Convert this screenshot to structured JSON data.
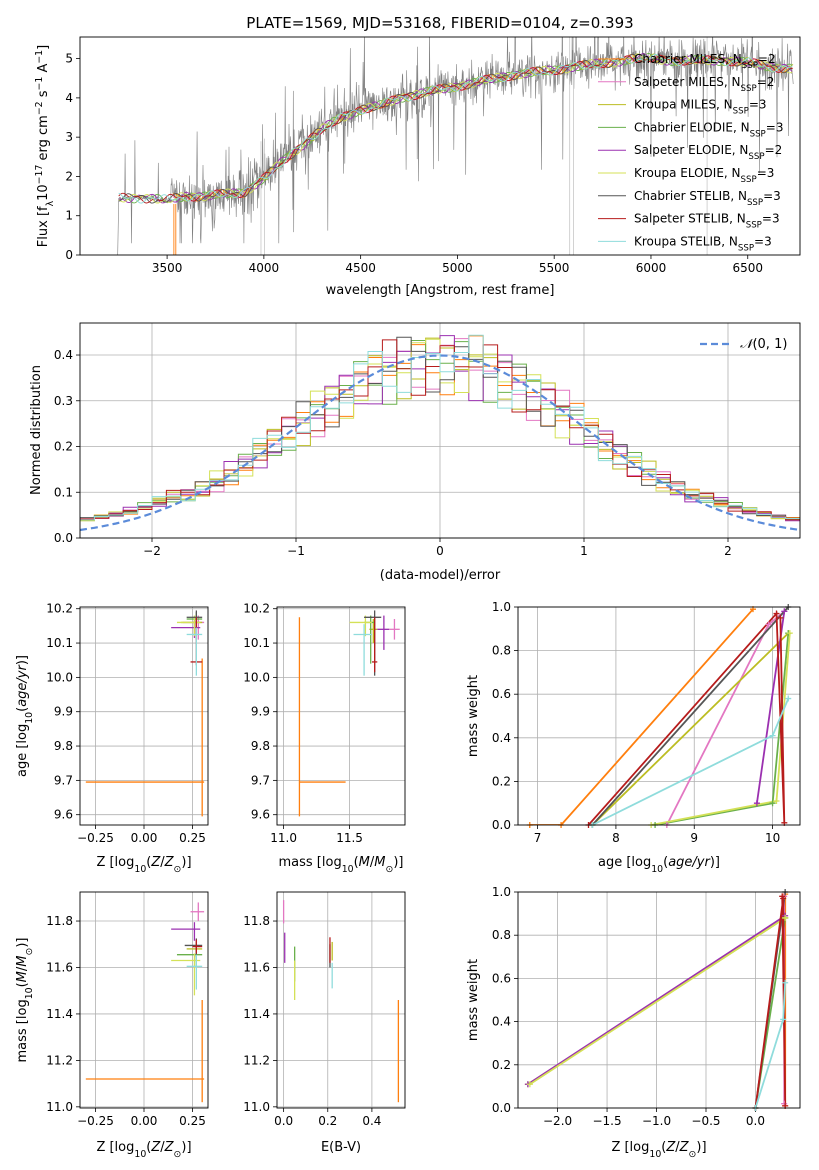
{
  "figure_title": "PLATE=1569, MJD=53168, FIBERID=0104, z=0.393",
  "colors": {
    "Chabrier MILES": "#ff7f0e",
    "Salpeter MILES": "#e377c2",
    "Kroupa MILES": "#bcbd22",
    "Chabrier ELODIE": "#6ab04c",
    "Salpeter ELODIE": "#9b30b0",
    "Kroupa ELODIE": "#d4e157",
    "Chabrier STELIB": "#555555",
    "Salpeter STELIB": "#b71c1c",
    "Kroupa STELIB": "#8fdcdc",
    "data": "#808080",
    "normal": "#5b8bd9"
  },
  "chart_data": [
    {
      "type": "line",
      "panel": "spectrum",
      "xlabel": "wavelength [Angstrom, rest frame]",
      "ylabel": "Flux [f_λ 10^-17 erg cm^-2 s^-1 A^-1]",
      "xlim": [
        3050,
        6770
      ],
      "ylim": [
        0,
        5.55
      ],
      "xticks": [
        3500,
        4000,
        4500,
        5000,
        5500,
        6000,
        6500
      ],
      "yticks": [
        0,
        1,
        2,
        3,
        4,
        5
      ],
      "grid": false,
      "legend_position": "top-right",
      "legend": [
        "Chabrier MILES, N_SSP=2",
        "Salpeter MILES, N_SSP=2",
        "Kroupa MILES, N_SSP=3",
        "Chabrier ELODIE, N_SSP=3",
        "Salpeter ELODIE, N_SSP=2",
        "Kroupa ELODIE, N_SSP=3",
        "Chabrier STELIB, N_SSP=3",
        "Salpeter STELIB, N_SSP=3",
        "Kroupa STELIB, N_SSP=3"
      ],
      "continuum": {
        "x": [
          3250,
          3400,
          3500,
          3600,
          3700,
          3800,
          3900,
          4000,
          4100,
          4200,
          4300,
          4400,
          4500,
          4600,
          4700,
          4800,
          4900,
          5000,
          5100,
          5200,
          5300,
          5400,
          5500,
          5600,
          5700,
          5800,
          5900,
          6000,
          6100,
          6200,
          6300,
          6400,
          6500,
          6600,
          6730
        ],
        "y": [
          1.45,
          1.45,
          1.4,
          1.5,
          1.5,
          1.55,
          1.6,
          1.95,
          2.4,
          2.8,
          3.2,
          3.5,
          3.7,
          3.8,
          4.0,
          4.1,
          4.2,
          4.3,
          4.4,
          4.5,
          4.6,
          4.65,
          4.7,
          4.8,
          4.85,
          4.9,
          5.0,
          5.0,
          4.95,
          4.95,
          4.95,
          4.95,
          4.9,
          4.8,
          4.75
        ]
      }
    },
    {
      "type": "bar",
      "panel": "residual-histogram",
      "xlabel": "(data-model)/error",
      "ylabel": "Normed distribution",
      "xlim": [
        -2.5,
        2.5
      ],
      "ylim": [
        0,
        0.47
      ],
      "xticks": [
        -2,
        -1,
        0,
        1,
        2
      ],
      "yticks": [
        0.0,
        0.1,
        0.2,
        0.3,
        0.4
      ],
      "grid": true,
      "bin_width": 0.1,
      "legend": [
        "N(0,1)"
      ],
      "legend_position": "top-right",
      "normal_pdf": {
        "mean": 0,
        "sigma": 1,
        "peak": 0.399
      }
    },
    {
      "type": "scatter",
      "panel": "age-vs-Z",
      "xlabel": "Z [log10(Z/Z⊙)]",
      "ylabel": "age [log10(age/yr)]",
      "xlim": [
        -0.33,
        0.33
      ],
      "ylim": [
        9.57,
        10.205
      ],
      "xticks": [
        -0.25,
        0.0,
        0.25
      ],
      "yticks": [
        9.6,
        9.7,
        9.8,
        9.9,
        10.0,
        10.1,
        10.2
      ],
      "points": [
        {
          "model": "Chabrier MILES",
          "x": 0.3,
          "y": 9.695,
          "xerr": [
            0.6,
            0.01
          ],
          "yerr": [
            0.1,
            0.36
          ]
        },
        {
          "model": "Salpeter MILES",
          "x": 0.28,
          "y": 10.16,
          "xerr": [
            0.08,
            0.03
          ],
          "yerr": [
            0.05,
            0.02
          ]
        },
        {
          "model": "Kroupa MILES",
          "x": 0.27,
          "y": 10.16,
          "xerr": [
            0.08,
            0.03
          ],
          "yerr": [
            0.05,
            0.02
          ]
        },
        {
          "model": "Chabrier ELODIE",
          "x": 0.27,
          "y": 10.17,
          "xerr": [
            0.05,
            0.03
          ],
          "yerr": [
            0.03,
            0.02
          ]
        },
        {
          "model": "Salpeter ELODIE",
          "x": 0.26,
          "y": 10.145,
          "xerr": [
            0.12,
            0.03
          ],
          "yerr": [
            0.03,
            0.02
          ]
        },
        {
          "model": "Kroupa ELODIE",
          "x": 0.26,
          "y": 10.16,
          "xerr": [
            0.09,
            0.03
          ],
          "yerr": [
            0.04,
            0.02
          ]
        },
        {
          "model": "Chabrier STELIB",
          "x": 0.27,
          "y": 10.175,
          "xerr": [
            0.05,
            0.03
          ],
          "yerr": [
            0.05,
            0.02
          ]
        },
        {
          "model": "Salpeter STELIB",
          "x": 0.27,
          "y": 10.045,
          "xerr": [
            0.03,
            0.03
          ],
          "yerr": [
            0.01,
            0.13
          ]
        },
        {
          "model": "Kroupa STELIB",
          "x": 0.27,
          "y": 10.125,
          "xerr": [
            0.05,
            0.03
          ],
          "yerr": [
            0.12,
            0.02
          ]
        }
      ]
    },
    {
      "type": "scatter",
      "panel": "age-vs-mass",
      "xlabel": "mass [log10(M/M⊙)]",
      "ylabel": "",
      "xlim": [
        10.95,
        11.92
      ],
      "ylim": [
        9.57,
        10.205
      ],
      "xticks": [
        11.0,
        11.5
      ],
      "yticks": [
        9.6,
        9.7,
        9.8,
        9.9,
        10.0,
        10.1,
        10.2
      ],
      "points": [
        {
          "model": "Chabrier MILES",
          "x": 11.12,
          "y": 9.695,
          "xerr": [
            0.0,
            0.35
          ],
          "yerr": [
            0.1,
            0.48
          ]
        },
        {
          "model": "Salpeter MILES",
          "x": 11.84,
          "y": 10.14,
          "xerr": [
            0.04,
            0.04
          ],
          "yerr": [
            0.03,
            0.03
          ]
        },
        {
          "model": "Kroupa MILES",
          "x": 11.68,
          "y": 10.14,
          "xerr": [
            0.03,
            0.03
          ],
          "yerr": [
            0.04,
            0.03
          ]
        },
        {
          "model": "Chabrier ELODIE",
          "x": 11.66,
          "y": 10.16,
          "xerr": [
            0.05,
            0.03
          ],
          "yerr": [
            0.12,
            0.02
          ]
        },
        {
          "model": "Salpeter ELODIE",
          "x": 11.76,
          "y": 10.14,
          "xerr": [
            0.05,
            0.04
          ],
          "yerr": [
            0.06,
            0.04
          ]
        },
        {
          "model": "Kroupa ELODIE",
          "x": 11.62,
          "y": 10.16,
          "xerr": [
            0.12,
            0.05
          ],
          "yerr": [
            0.04,
            0.02
          ]
        },
        {
          "model": "Chabrier STELIB",
          "x": 11.69,
          "y": 10.175,
          "xerr": [
            0.08,
            0.05
          ],
          "yerr": [
            0.17,
            0.02
          ]
        },
        {
          "model": "Salpeter STELIB",
          "x": 11.69,
          "y": 10.045,
          "xerr": [
            0.02,
            0.02
          ],
          "yerr": [
            0.03,
            0.13
          ]
        },
        {
          "model": "Kroupa STELIB",
          "x": 11.61,
          "y": 10.125,
          "xerr": [
            0.08,
            0.06
          ],
          "yerr": [
            0.12,
            0.03
          ]
        }
      ]
    },
    {
      "type": "line",
      "panel": "mass-weight-vs-age",
      "xlabel": "age [log10(age/yr)]",
      "ylabel": "mass weight",
      "xlim": [
        6.75,
        10.35
      ],
      "ylim": [
        0,
        1.0
      ],
      "xticks": [
        7,
        8,
        9,
        10
      ],
      "yticks": [
        0.0,
        0.2,
        0.4,
        0.6,
        0.8,
        1.0
      ],
      "grid": true,
      "series": [
        {
          "model": "Chabrier MILES",
          "x": [
            6.9,
            7.3,
            9.75
          ],
          "y": [
            0.0,
            0.0,
            0.99
          ]
        },
        {
          "model": "Salpeter MILES",
          "x": [
            8.65,
            9.95,
            10.15
          ],
          "y": [
            0.0,
            0.92,
            0.98
          ]
        },
        {
          "model": "Kroupa MILES",
          "x": [
            7.7,
            10.2
          ],
          "y": [
            0.0,
            0.88
          ]
        },
        {
          "model": "Chabrier ELODIE",
          "x": [
            8.5,
            10.0,
            10.2
          ],
          "y": [
            0.0,
            0.1,
            0.88
          ]
        },
        {
          "model": "Salpeter ELODIE",
          "x": [
            9.8,
            10.15
          ],
          "y": [
            0.1,
            0.98
          ]
        },
        {
          "model": "Kroupa ELODIE",
          "x": [
            8.45,
            10.05,
            10.22
          ],
          "y": [
            0.0,
            0.11,
            0.88
          ]
        },
        {
          "model": "Chabrier STELIB",
          "x": [
            7.7,
            10.2
          ],
          "y": [
            0.0,
            1.0
          ]
        },
        {
          "model": "Salpeter STELIB",
          "x": [
            7.65,
            10.05,
            10.15,
            10.1
          ],
          "y": [
            0.0,
            0.97,
            0.01,
            0.95
          ]
        },
        {
          "model": "Kroupa STELIB",
          "x": [
            7.7,
            10.0,
            10.2
          ],
          "y": [
            0.0,
            0.41,
            0.58
          ]
        }
      ]
    },
    {
      "type": "scatter",
      "panel": "mass-vs-Z",
      "xlabel": "Z [log10(Z/Z⊙)]",
      "ylabel": "mass [log10(M/M⊙)]",
      "xlim": [
        -0.33,
        0.33
      ],
      "ylim": [
        10.995,
        11.925
      ],
      "xticks": [
        -0.25,
        0.0,
        0.25
      ],
      "yticks": [
        11.0,
        11.2,
        11.4,
        11.6,
        11.8
      ],
      "points": [
        {
          "model": "Chabrier MILES",
          "x": 0.3,
          "y": 11.12,
          "xerr": [
            0.6,
            0.01
          ],
          "yerr": [
            0.1,
            0.34
          ]
        },
        {
          "model": "Salpeter MILES",
          "x": 0.28,
          "y": 11.84,
          "xerr": [
            0.04,
            0.03
          ],
          "yerr": [
            0.04,
            0.04
          ]
        },
        {
          "model": "Kroupa MILES",
          "x": 0.27,
          "y": 11.68,
          "xerr": [
            0.05,
            0.03
          ],
          "yerr": [
            0.05,
            0.03
          ]
        },
        {
          "model": "Chabrier ELODIE",
          "x": 0.27,
          "y": 11.655,
          "xerr": [
            0.1,
            0.03
          ],
          "yerr": [
            0.05,
            0.03
          ]
        },
        {
          "model": "Salpeter ELODIE",
          "x": 0.26,
          "y": 11.765,
          "xerr": [
            0.12,
            0.03
          ],
          "yerr": [
            0.05,
            0.03
          ]
        },
        {
          "model": "Kroupa ELODIE",
          "x": 0.26,
          "y": 11.63,
          "xerr": [
            0.12,
            0.03
          ],
          "yerr": [
            0.15,
            0.03
          ]
        },
        {
          "model": "Chabrier STELIB",
          "x": 0.27,
          "y": 11.695,
          "xerr": [
            0.06,
            0.03
          ],
          "yerr": [
            0.05,
            0.03
          ]
        },
        {
          "model": "Salpeter STELIB",
          "x": 0.27,
          "y": 11.69,
          "xerr": [
            0.02,
            0.03
          ],
          "yerr": [
            0.03,
            0.03
          ]
        },
        {
          "model": "Kroupa STELIB",
          "x": 0.27,
          "y": 11.605,
          "xerr": [
            0.05,
            0.03
          ],
          "yerr": [
            0.1,
            0.05
          ]
        }
      ]
    },
    {
      "type": "scatter",
      "panel": "mass-vs-EBV",
      "xlabel": "E(B-V)",
      "ylabel": "",
      "xlim": [
        -0.03,
        0.55
      ],
      "ylim": [
        10.995,
        11.925
      ],
      "xticks": [
        0.0,
        0.2,
        0.4
      ],
      "yticks": [
        11.0,
        11.2,
        11.4,
        11.6,
        11.8
      ],
      "points": [
        {
          "model": "Chabrier MILES",
          "x": 0.52,
          "y": 11.12,
          "yerr": [
            0.1,
            0.34
          ]
        },
        {
          "model": "Salpeter MILES",
          "x": 0.0,
          "y": 11.84,
          "yerr": [
            0.05,
            0.05
          ]
        },
        {
          "model": "Kroupa MILES",
          "x": 0.22,
          "y": 11.68,
          "yerr": [
            0.05,
            0.03
          ]
        },
        {
          "model": "Chabrier ELODIE",
          "x": 0.05,
          "y": 11.66,
          "yerr": [
            0.12,
            0.03
          ]
        },
        {
          "model": "Salpeter ELODIE",
          "x": 0.005,
          "y": 11.7,
          "yerr": [
            0.08,
            0.05
          ]
        },
        {
          "model": "Kroupa ELODIE",
          "x": 0.05,
          "y": 11.56,
          "yerr": [
            0.1,
            0.07
          ]
        },
        {
          "model": "Chabrier STELIB",
          "x": 0.21,
          "y": 11.65,
          "yerr": [
            0.05,
            0.05
          ]
        },
        {
          "model": "Salpeter STELIB",
          "x": 0.21,
          "y": 11.67,
          "yerr": [
            0.05,
            0.06
          ]
        },
        {
          "model": "Kroupa STELIB",
          "x": 0.22,
          "y": 11.57,
          "yerr": [
            0.06,
            0.05
          ]
        }
      ]
    },
    {
      "type": "line",
      "panel": "mass-weight-vs-Z",
      "xlabel": "Z [log10(Z/Z⊙)]",
      "ylabel": "mass weight",
      "xlim": [
        -2.4,
        0.45
      ],
      "ylim": [
        0,
        1.0
      ],
      "xticks": [
        -2.0,
        -1.5,
        -1.0,
        -0.5,
        0.0
      ],
      "yticks": [
        0.0,
        0.2,
        0.4,
        0.6,
        0.8,
        1.0
      ],
      "grid": true,
      "series": [
        {
          "model": "Chabrier MILES",
          "x": [
            0.3,
            0.3
          ],
          "y": [
            0.01,
            0.99
          ]
        },
        {
          "model": "Salpeter MILES",
          "x": [
            0.29,
            0.29
          ],
          "y": [
            0.02,
            0.98
          ]
        },
        {
          "model": "Kroupa MILES",
          "x": [
            -2.3,
            0.3
          ],
          "y": [
            0.11,
            0.88
          ]
        },
        {
          "model": "Chabrier ELODIE",
          "x": [
            0.0,
            0.3
          ],
          "y": [
            0.0,
            0.88
          ]
        },
        {
          "model": "Salpeter ELODIE",
          "x": [
            -2.3,
            0.3
          ],
          "y": [
            0.11,
            0.89
          ]
        },
        {
          "model": "Kroupa ELODIE",
          "x": [
            -2.28,
            0.3
          ],
          "y": [
            0.11,
            0.88
          ]
        },
        {
          "model": "Chabrier STELIB",
          "x": [
            0.0,
            0.3
          ],
          "y": [
            0.0,
            1.0
          ]
        },
        {
          "model": "Salpeter STELIB",
          "x": [
            0.0,
            0.28,
            0.3,
            0.27
          ],
          "y": [
            0.0,
            0.97,
            0.01,
            0.98
          ]
        },
        {
          "model": "Kroupa STELIB",
          "x": [
            0.0,
            0.28,
            0.3
          ],
          "y": [
            0.0,
            0.41,
            0.58
          ]
        }
      ]
    }
  ]
}
